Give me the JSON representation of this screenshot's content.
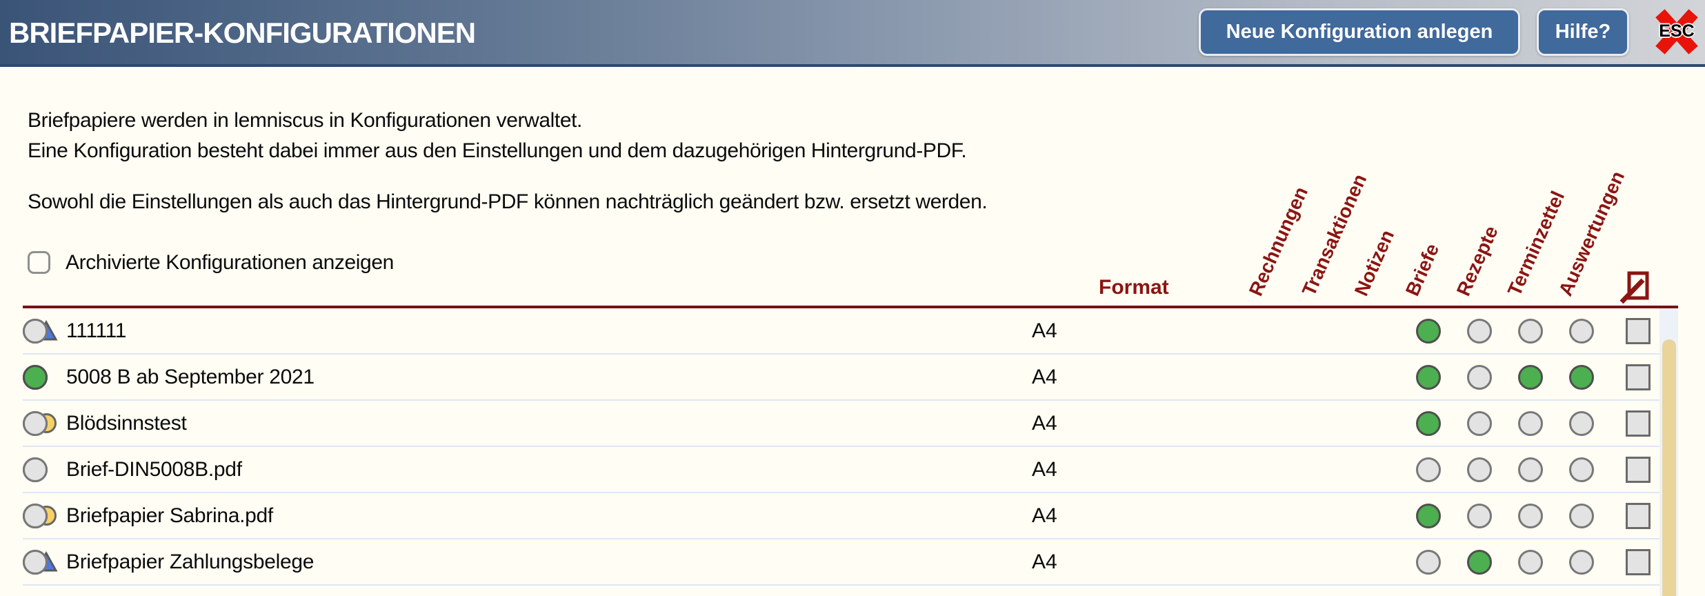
{
  "header": {
    "title": "BRIEFPAPIER-KONFIGURATIONEN",
    "new_config_button": "Neue Konfiguration anlegen",
    "help_button": "Hilfe?",
    "esc_label": "ESC"
  },
  "intro": {
    "line1": "Briefpapiere werden in lemniscus in Konfigurationen verwaltet.",
    "line2": "Eine Konfiguration besteht dabei immer aus den Einstellungen und dem dazugehörigen Hintergrund-PDF.",
    "line3": "Sowohl die Einstellungen als auch das Hintergrund-PDF können nachträglich geändert bzw. ersetzt werden."
  },
  "filter": {
    "archived_checkbox_label": "Archivierte Konfigurationen anzeigen",
    "checked": false
  },
  "table": {
    "format_header": "Format",
    "columns": [
      "Rechnungen",
      "Transaktionen",
      "Notizen",
      "Briefe",
      "Rezepte",
      "Terminzettel",
      "Auswertungen"
    ],
    "rows": [
      {
        "icon": "triangle",
        "name": "111111",
        "format": "A4",
        "assignments": [
          true,
          false,
          false,
          false,
          false,
          false,
          false
        ],
        "archived": false
      },
      {
        "icon": "none",
        "name": "5008 B ab September 2021",
        "format": "A4",
        "assignments": [
          true,
          false,
          true,
          true,
          true,
          true,
          true
        ],
        "archived": false
      },
      {
        "icon": "circle",
        "name": "Blödsinnstest",
        "format": "A4",
        "assignments": [
          true,
          false,
          false,
          false,
          false,
          false,
          false
        ],
        "archived": false
      },
      {
        "icon": "none",
        "name": "Brief-DIN5008B.pdf",
        "format": "A4",
        "assignments": [
          false,
          false,
          false,
          false,
          false,
          false,
          false
        ],
        "archived": false
      },
      {
        "icon": "circle",
        "name": "Briefpapier Sabrina.pdf",
        "format": "A4",
        "assignments": [
          true,
          false,
          false,
          false,
          false,
          true,
          false
        ],
        "archived": false
      },
      {
        "icon": "triangle",
        "name": "Briefpapier Zahlungsbelege",
        "format": "A4",
        "assignments": [
          false,
          true,
          false,
          false,
          false,
          false,
          false
        ],
        "archived": false
      }
    ]
  },
  "colors": {
    "accent_maroon": "#8b1512",
    "table_line_red": "#7a1113",
    "header_gradient_start": "#3a5478",
    "header_gradient_end": "#d2d4d8",
    "button_blue": "#40699c",
    "active_green": "#4caf50",
    "inactive_gray": "#e3e3e3",
    "status_yellow": "#f8d066",
    "status_triangle_blue": "#4d7ae0",
    "esc_red": "#e81309",
    "scrollbar_tan": "#e9d49a",
    "page_background": "#fffdf4"
  }
}
